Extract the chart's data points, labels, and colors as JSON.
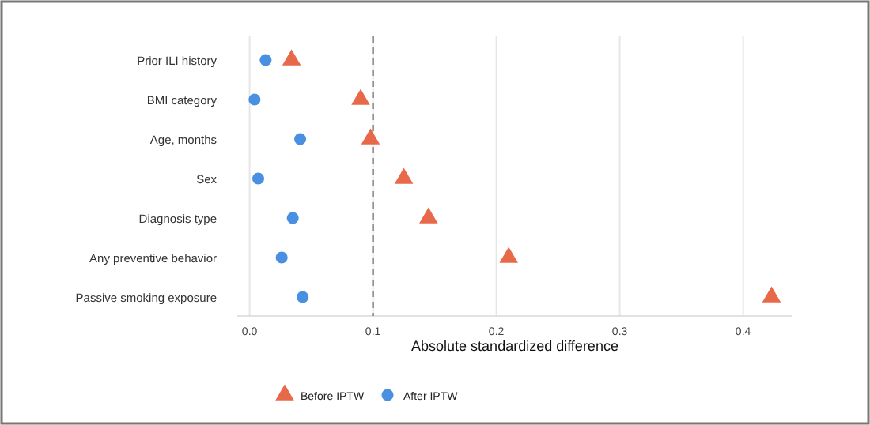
{
  "chart_data": {
    "type": "scatter",
    "orientation": "horizontal",
    "xlabel": "Absolute standardized difference",
    "categories": [
      "Prior ILI history",
      "BMI category",
      "Age, months",
      "Sex",
      "Diagnosis type",
      "Any preventive behavior",
      "Passive smoking exposure"
    ],
    "series": [
      {
        "name": "Before IPTW",
        "color": "#e8694a",
        "marker": "triangle",
        "values": [
          0.034,
          0.09,
          0.098,
          0.125,
          0.145,
          0.21,
          0.423
        ]
      },
      {
        "name": "After IPTW",
        "color": "#4a90e2",
        "marker": "circle",
        "values": [
          0.013,
          0.004,
          0.041,
          0.007,
          0.035,
          0.026,
          0.043
        ]
      }
    ],
    "xlim": [
      -0.01,
      0.44
    ],
    "xticks": [
      {
        "value": 0,
        "label": "0.0"
      },
      0.1,
      0.2,
      0.3,
      0.4
    ],
    "grid": "x",
    "legend": "bottom",
    "ref_lines": [
      {
        "axis": "x",
        "value": 0.1,
        "color": "#555555",
        "line_style": "dashed"
      }
    ]
  }
}
